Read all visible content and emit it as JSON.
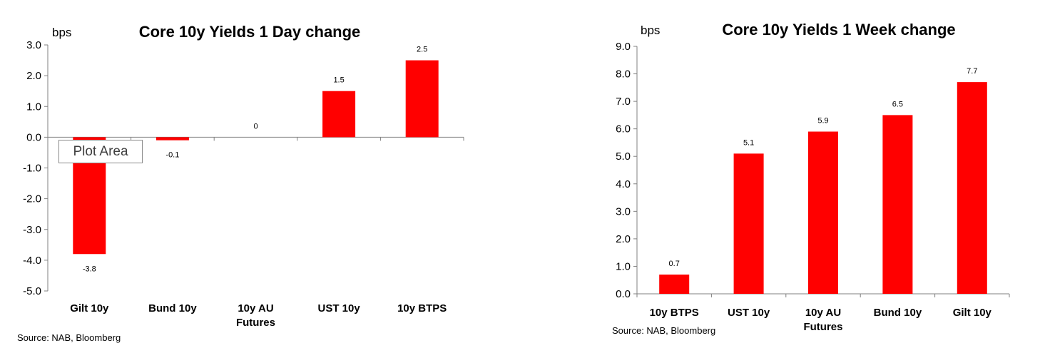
{
  "chart_data": [
    {
      "type": "bar",
      "title": "Core 10y Yields 1 Day change",
      "unit_label": "bps",
      "categories": [
        [
          "Gilt 10y"
        ],
        [
          "Bund 10y"
        ],
        [
          "10y AU",
          "Futures"
        ],
        [
          "UST 10y"
        ],
        [
          "10y BTPS"
        ]
      ],
      "values": [
        -3.8,
        -0.1,
        0,
        1.5,
        2.5
      ],
      "data_labels": [
        "-3.8",
        "-0.1",
        "0",
        "1.5",
        "2.5"
      ],
      "ylim": [
        -5.0,
        3.0
      ],
      "yticks": [
        "3.0",
        "2.0",
        "1.0",
        "0.0",
        "-1.0",
        "-2.0",
        "-3.0",
        "-4.0",
        "-5.0"
      ],
      "bar_color": "#ff0000",
      "grid": false,
      "legend": "none",
      "source": "Source: NAB, Bloomberg",
      "tooltip": "Plot Area"
    },
    {
      "type": "bar",
      "title": "Core 10y Yields 1 Week change",
      "unit_label": "bps",
      "categories": [
        [
          "10y BTPS"
        ],
        [
          "UST 10y"
        ],
        [
          "10y AU",
          "Futures"
        ],
        [
          "Bund 10y"
        ],
        [
          "Gilt 10y"
        ]
      ],
      "values": [
        0.7,
        5.1,
        5.9,
        6.5,
        7.7
      ],
      "data_labels": [
        "0.7",
        "5.1",
        "5.9",
        "6.5",
        "7.7"
      ],
      "ylim": [
        0.0,
        9.0
      ],
      "yticks": [
        "9.0",
        "8.0",
        "7.0",
        "6.0",
        "5.0",
        "4.0",
        "3.0",
        "2.0",
        "1.0",
        "0.0"
      ],
      "bar_color": "#ff0000",
      "grid": false,
      "legend": "none",
      "source": "Source: NAB, Bloomberg"
    }
  ]
}
